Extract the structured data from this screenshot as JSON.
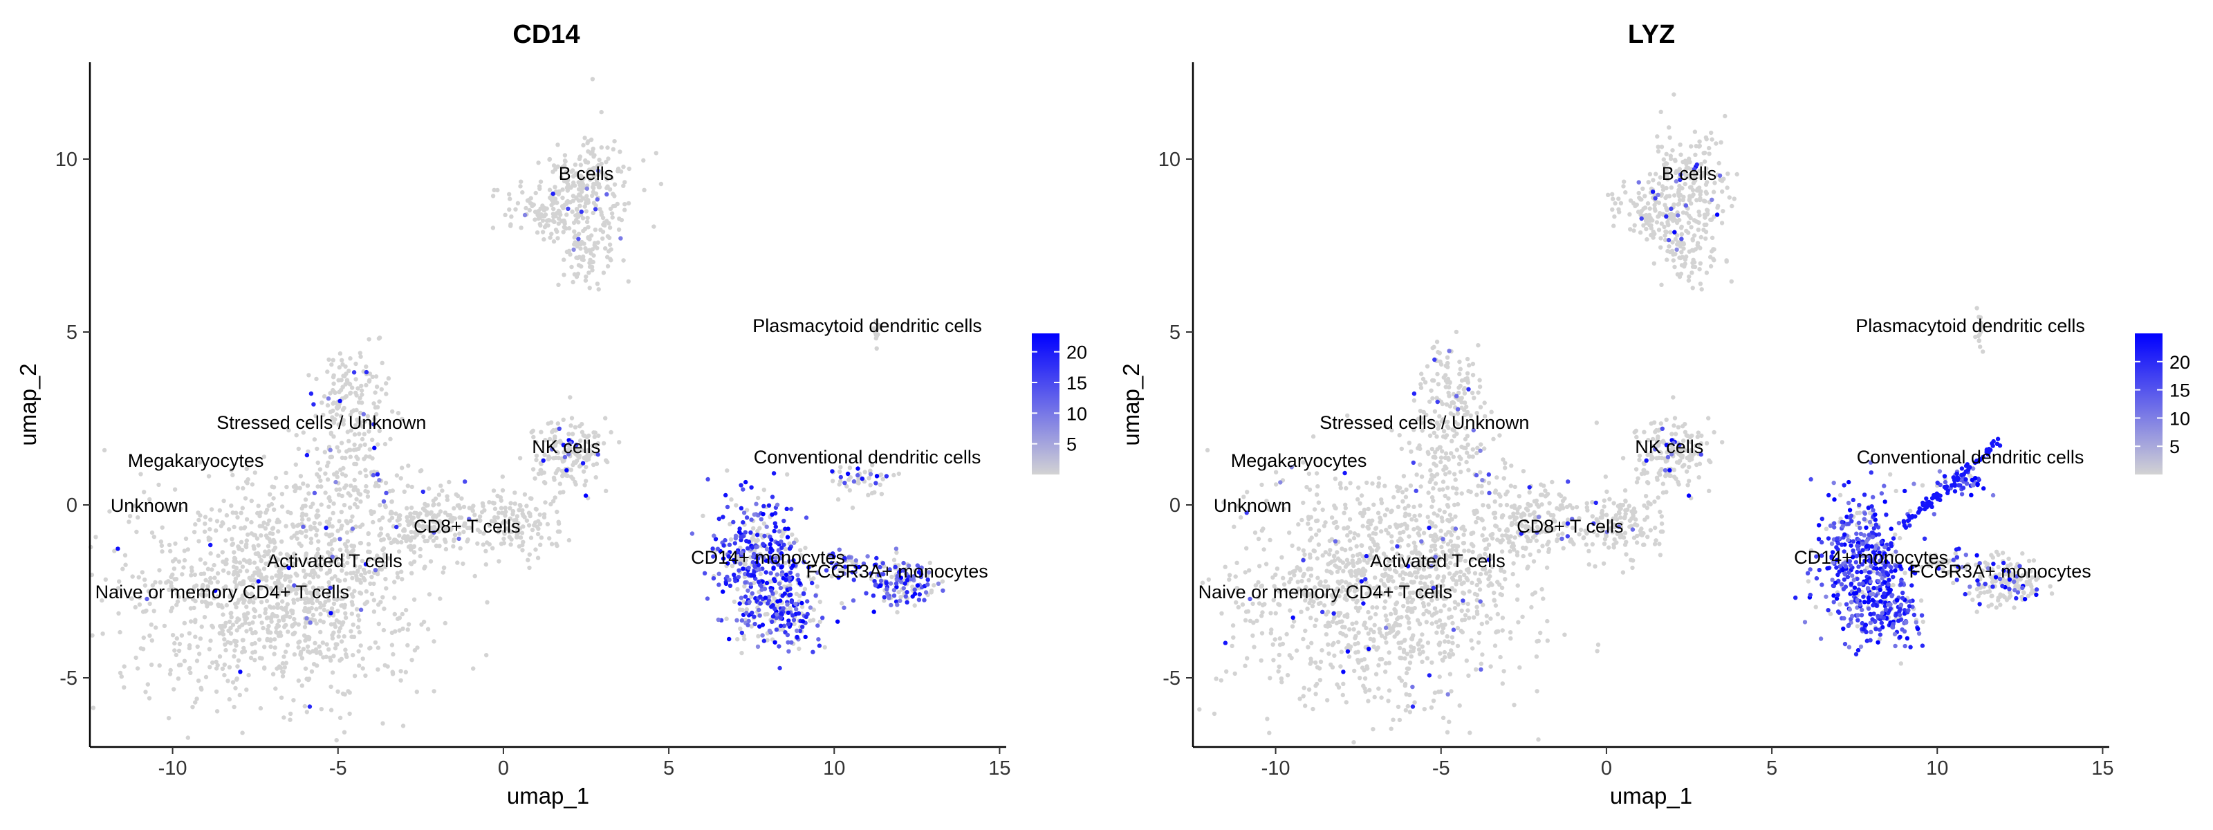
{
  "chart_data": [
    {
      "type": "scatter",
      "title": "CD14",
      "xlabel": "umap_1",
      "ylabel": "umap_2",
      "xlim": [
        -12.5,
        15.2
      ],
      "ylim": [
        -7,
        12.8
      ],
      "xticks": [
        -10,
        -5,
        0,
        5,
        10,
        15
      ],
      "yticks": [
        -5,
        0,
        5,
        10
      ],
      "grid": false,
      "legend": "right",
      "colorbar": {
        "min": 0,
        "max": 23,
        "ticks": [
          5,
          10,
          15,
          20
        ],
        "low_color": "#d3d3d3",
        "high_color": "#0000ff"
      },
      "cluster_labels": [
        {
          "text": "B cells",
          "x": 2.5,
          "y": 9.4
        },
        {
          "text": "Plasmacytoid dendritic cells",
          "x": 11,
          "y": 5
        },
        {
          "text": "Stressed cells / Unknown",
          "x": -5.5,
          "y": 2.2
        },
        {
          "text": "Megakaryocytes",
          "x": -9.3,
          "y": 1.1
        },
        {
          "text": "NK cells",
          "x": 1.9,
          "y": 1.5
        },
        {
          "text": "Conventional dendritic cells",
          "x": 11,
          "y": 1.2
        },
        {
          "text": "Unknown",
          "x": -10.7,
          "y": -0.2
        },
        {
          "text": "CD8+ T cells",
          "x": -1.1,
          "y": -0.8
        },
        {
          "text": "Activated T cells",
          "x": -5.1,
          "y": -1.8
        },
        {
          "text": "CD14+ monocytes",
          "x": 8,
          "y": -1.7
        },
        {
          "text": "FCGR3A+ monocytes",
          "x": 11.9,
          "y": -2.1
        },
        {
          "text": "Naive or memory CD4+ T cells",
          "x": -8.5,
          "y": -2.7
        }
      ]
    },
    {
      "type": "scatter",
      "title": "LYZ",
      "xlabel": "umap_1",
      "ylabel": "umap_2",
      "xlim": [
        -12.5,
        15.2
      ],
      "ylim": [
        -7,
        12.8
      ],
      "xticks": [
        -10,
        -5,
        0,
        5,
        10,
        15
      ],
      "yticks": [
        -5,
        0,
        5,
        10
      ],
      "grid": false,
      "legend": "right",
      "colorbar": {
        "min": 0,
        "max": 25,
        "ticks": [
          5,
          10,
          15,
          20
        ],
        "low_color": "#d3d3d3",
        "high_color": "#0000ff"
      },
      "cluster_labels": [
        {
          "text": "B cells",
          "x": 2.5,
          "y": 9.4
        },
        {
          "text": "Plasmacytoid dendritic cells",
          "x": 11,
          "y": 5
        },
        {
          "text": "Stressed cells / Unknown",
          "x": -5.5,
          "y": 2.2
        },
        {
          "text": "Megakaryocytes",
          "x": -9.3,
          "y": 1.1
        },
        {
          "text": "NK cells",
          "x": 1.9,
          "y": 1.5
        },
        {
          "text": "Conventional dendritic cells",
          "x": 11,
          "y": 1.2
        },
        {
          "text": "Unknown",
          "x": -10.7,
          "y": -0.2
        },
        {
          "text": "CD8+ T cells",
          "x": -1.1,
          "y": -0.8
        },
        {
          "text": "Activated T cells",
          "x": -5.1,
          "y": -1.8
        },
        {
          "text": "CD14+ monocytes",
          "x": 8,
          "y": -1.7
        },
        {
          "text": "FCGR3A+ monocytes",
          "x": 11.9,
          "y": -2.1
        },
        {
          "text": "Naive or memory CD4+ T cells",
          "x": -8.5,
          "y": -2.7
        }
      ]
    }
  ]
}
